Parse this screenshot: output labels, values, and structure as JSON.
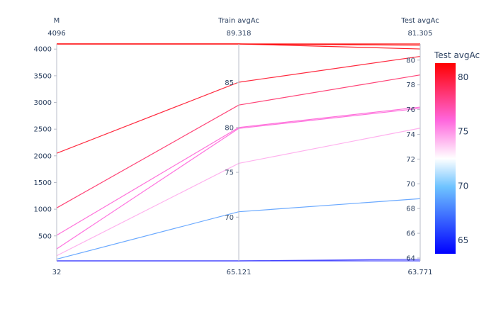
{
  "chart_data": {
    "type": "parallel-coordinates",
    "dimensions": [
      {
        "label": "M",
        "range": [
          32,
          4096
        ],
        "range_max_label": "4096",
        "range_min_label": "32",
        "ticks": [
          500,
          1000,
          1500,
          2000,
          2500,
          3000,
          3500,
          4000
        ],
        "tick_labels": [
          "500",
          "1000",
          "1500",
          "2000",
          "2500",
          "3000",
          "3500",
          "4000"
        ],
        "tick_side": "left"
      },
      {
        "label": "Train avgAc",
        "range": [
          65.121,
          89.318
        ],
        "range_max_label": "89.318",
        "range_min_label": "65.121",
        "ticks": [
          70,
          75,
          80,
          85
        ],
        "tick_labels": [
          "70",
          "75",
          "80",
          "85"
        ],
        "tick_side": "left"
      },
      {
        "label": "Test avgAc",
        "range": [
          63.771,
          81.305
        ],
        "range_max_label": "81.305",
        "range_min_label": "63.771",
        "ticks": [
          64,
          66,
          68,
          70,
          72,
          74,
          76,
          78,
          80
        ],
        "tick_labels": [
          "64",
          "66",
          "68",
          "70",
          "72",
          "74",
          "76",
          "78",
          "80"
        ],
        "tick_side": "left"
      }
    ],
    "lines": [
      {
        "values": [
          32,
          65.121,
          63.771
        ]
      },
      {
        "values": [
          32,
          65.121,
          63.9
        ]
      },
      {
        "values": [
          64,
          70.6,
          68.8
        ]
      },
      {
        "values": [
          128,
          76.0,
          74.5
        ]
      },
      {
        "values": [
          256,
          79.9,
          76.1
        ]
      },
      {
        "values": [
          512,
          80.0,
          76.2
        ]
      },
      {
        "values": [
          1024,
          82.5,
          78.8
        ]
      },
      {
        "values": [
          2048,
          85.05,
          80.3
        ]
      },
      {
        "values": [
          4096,
          89.318,
          80.9
        ]
      },
      {
        "values": [
          4096,
          89.318,
          81.305
        ]
      },
      {
        "values": [
          4096,
          89.318,
          81.2
        ]
      }
    ],
    "color_axis": {
      "title": "Test avgAc",
      "min": 63.771,
      "max": 81.305,
      "ticks": [
        65,
        70,
        75,
        80
      ],
      "tick_labels": [
        "65",
        "70",
        "75",
        "80"
      ],
      "colorscale": [
        [
          0.0,
          "#0000ff"
        ],
        [
          0.35,
          "#6ec3ff"
        ],
        [
          0.5,
          "#ffffff"
        ],
        [
          0.7,
          "#ff66dd"
        ],
        [
          1.0,
          "#ff0000"
        ]
      ]
    }
  }
}
